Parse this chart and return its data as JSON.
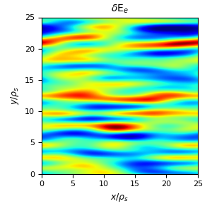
{
  "title": "$\\delta$E$_e$",
  "xlabel": "$x/\\rho_s$",
  "ylabel": "$y/\\rho_s$",
  "xlim": [
    0,
    25
  ],
  "ylim": [
    0,
    25
  ],
  "xticks": [
    0,
    5,
    10,
    15,
    20,
    25
  ],
  "yticks": [
    0,
    5,
    10,
    15,
    20,
    25
  ],
  "colormap": "jet",
  "nx": 512,
  "ny": 512,
  "seed": 7,
  "figsize": [
    3.0,
    2.91
  ],
  "dpi": 100,
  "title_fontsize": 10,
  "label_fontsize": 9,
  "tick_fontsize": 8
}
